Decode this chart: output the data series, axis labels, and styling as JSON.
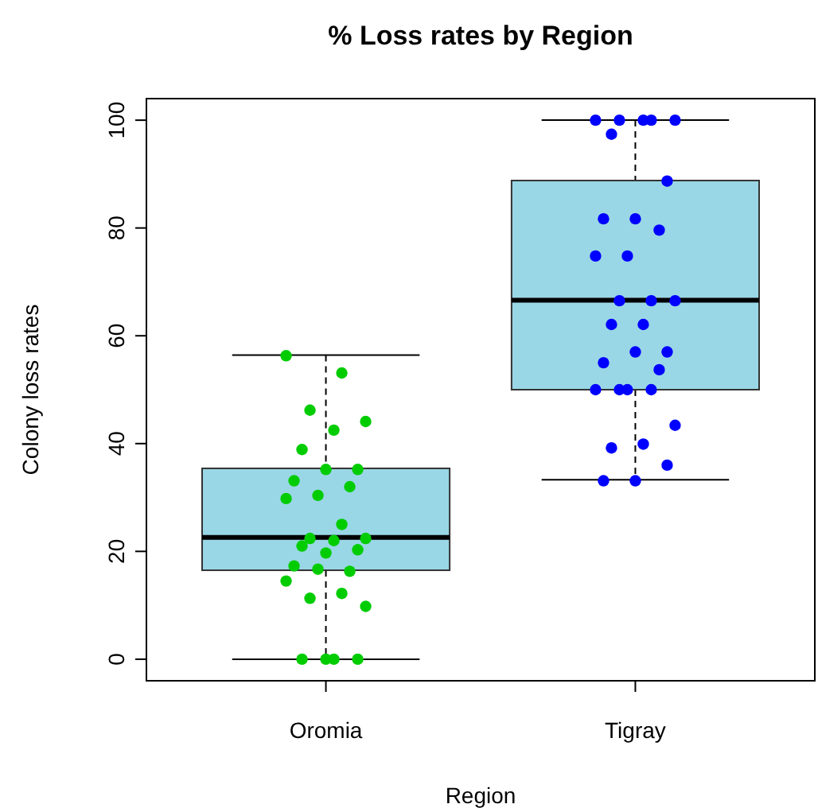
{
  "chart_data": {
    "type": "box",
    "title": "% Loss rates by Region",
    "xlabel": "Region",
    "ylabel": "Colony loss rates",
    "categories": [
      "Oromia",
      "Tigray"
    ],
    "ylim": [
      -4,
      104
    ],
    "yticks": [
      0,
      20,
      40,
      60,
      80,
      100
    ],
    "grid": false,
    "marker": "circle",
    "series": [
      {
        "color": "#9ad7e6",
        "boxes": [
          {
            "low": 0,
            "q1": 16.5,
            "median": 22.6,
            "q3": 35.4,
            "high": 56.4
          },
          {
            "low": 33.3,
            "q1": 50,
            "median": 66.6,
            "q3": 88.8,
            "high": 100
          }
        ]
      },
      {
        "type": "scatter",
        "color": "#00cc00",
        "x": [
          "Oromia",
          "Oromia",
          "Oromia",
          "Oromia",
          "Oromia",
          "Oromia",
          "Oromia",
          "Oromia",
          "Oromia",
          "Oromia",
          "Oromia",
          "Oromia",
          "Oromia",
          "Oromia",
          "Oromia",
          "Oromia",
          "Oromia",
          "Oromia",
          "Oromia",
          "Oromia",
          "Oromia",
          "Oromia",
          "Oromia",
          "Oromia",
          "Oromia",
          "Oromia",
          "Oromia",
          "Oromia",
          "Oromia",
          "Oromia"
        ],
        "values": [
          56.3,
          53.1,
          46.2,
          44.1,
          42.5,
          38.9,
          35.2,
          35.2,
          33.1,
          32,
          30.4,
          29.8,
          25,
          22.4,
          22.4,
          22,
          21,
          20.3,
          19.7,
          17.3,
          16.3,
          16.7,
          14.5,
          12.2,
          11.3,
          9.8,
          0,
          0,
          0,
          0
        ]
      },
      {
        "type": "scatter",
        "color": "#0000ff",
        "x": [
          "Tigray",
          "Tigray",
          "Tigray",
          "Tigray",
          "Tigray",
          "Tigray",
          "Tigray",
          "Tigray",
          "Tigray",
          "Tigray",
          "Tigray",
          "Tigray",
          "Tigray",
          "Tigray",
          "Tigray",
          "Tigray",
          "Tigray",
          "Tigray",
          "Tigray",
          "Tigray",
          "Tigray",
          "Tigray",
          "Tigray",
          "Tigray",
          "Tigray",
          "Tigray",
          "Tigray",
          "Tigray",
          "Tigray",
          "Tigray",
          "Tigray"
        ],
        "values": [
          100,
          100,
          100,
          100,
          100,
          97.4,
          88.7,
          81.7,
          81.7,
          79.6,
          74.8,
          74.8,
          66.5,
          66.5,
          66.5,
          62.1,
          62.1,
          57,
          57,
          55,
          53.7,
          50,
          50,
          50,
          50,
          43.4,
          39.9,
          39.2,
          36,
          33.1,
          33.1
        ]
      }
    ]
  }
}
